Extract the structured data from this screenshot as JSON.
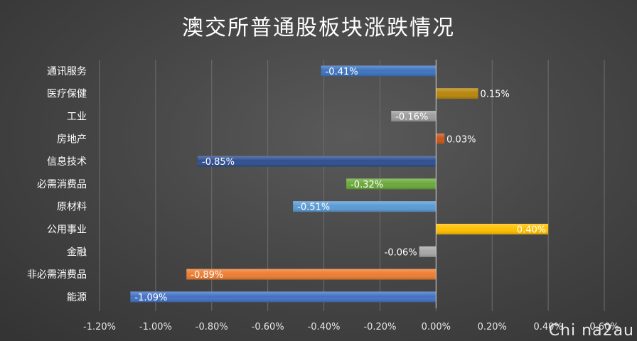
{
  "chart_data": {
    "type": "bar",
    "orientation": "horizontal",
    "title": "澳交所普通股板块涨跌情况",
    "categories": [
      "通讯服务",
      "医疗保健",
      "工业",
      "房地产",
      "信息技术",
      "必需消费品",
      "原材料",
      "公用事业",
      "金融",
      "非必需消费品",
      "能源"
    ],
    "values": [
      -0.41,
      0.15,
      -0.16,
      0.03,
      -0.85,
      -0.32,
      -0.51,
      0.4,
      -0.06,
      -0.89,
      -1.09
    ],
    "value_labels": [
      "-0.41%",
      "0.15%",
      "-0.16%",
      "0.03%",
      "-0.85%",
      "-0.32%",
      "-0.51%",
      "0.40%",
      "-0.06%",
      "-0.89%",
      "-1.09%"
    ],
    "bar_colors": [
      "#3d74bf",
      "#b8860b",
      "#9e9e9e",
      "#c8551c",
      "#2f4f8f",
      "#6aaa3a",
      "#5b9bd5",
      "#ffc000",
      "#a8a8a8",
      "#ed7d31",
      "#4472c4"
    ],
    "xlim": [
      -1.2,
      0.6
    ],
    "xticks": [
      "-1.20%",
      "-1.00%",
      "-0.80%",
      "-0.60%",
      "-0.40%",
      "-0.20%",
      "0.00%",
      "0.20%",
      "0.40%",
      "0.60%"
    ],
    "grid": true,
    "legend": "none"
  },
  "watermark": "Chi na2au"
}
